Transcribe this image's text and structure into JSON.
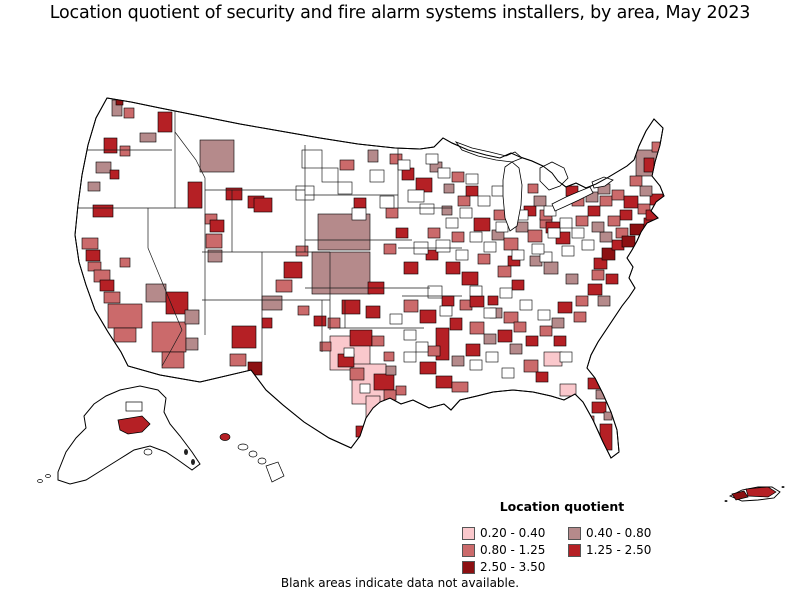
{
  "title": "Location quotient of security and fire alarm systems installers, by area, May 2023",
  "footer": "Blank areas indicate data not available.",
  "legend": {
    "title": "Location quotient",
    "items": [
      {
        "label": "0.20 - 0.40",
        "color": "#FAC8CC"
      },
      {
        "label": "0.40 - 0.80",
        "color": "#B58A8B"
      },
      {
        "label": "0.80 - 1.25",
        "color": "#CB6A6B"
      },
      {
        "label": "1.25 - 2.50",
        "color": "#B52025"
      },
      {
        "label": "2.50 - 3.50",
        "color": "#8C1012"
      }
    ]
  },
  "chart_data": {
    "type": "choropleth_map",
    "title": "Location quotient of security and fire alarm systems installers, by area, May 2023",
    "region": "United States",
    "period": "May 2023",
    "legend_title": "Location quotient",
    "legend_position": "bottom-right",
    "classes": [
      {
        "range": "0.20 - 0.40",
        "min": 0.2,
        "max": 0.4,
        "color": "#FAC8CC"
      },
      {
        "range": "0.40 - 0.80",
        "min": 0.4,
        "max": 0.8,
        "color": "#B58A8B"
      },
      {
        "range": "0.80 - 1.25",
        "min": 0.8,
        "max": 1.25,
        "color": "#CB6A6B"
      },
      {
        "range": "1.25 - 2.50",
        "min": 1.25,
        "max": 2.5,
        "color": "#B52025"
      },
      {
        "range": "2.50 - 3.50",
        "min": 2.5,
        "max": 3.5,
        "color": "#8C1012"
      }
    ],
    "no_data_note": "Blank areas indicate data not available.",
    "no_data_fill": "#FFFFFF"
  },
  "map": {
    "background": "#FFFFFF",
    "border_color": "#000000",
    "class_colors": [
      "#FFFFFF",
      "#FAC8CC",
      "#B58A8B",
      "#CB6A6B",
      "#B52025",
      "#8C1012"
    ],
    "patches": [
      [
        318,
        214,
        52,
        36,
        2
      ],
      [
        312,
        252,
        58,
        42,
        2
      ],
      [
        330,
        336,
        40,
        34,
        1
      ],
      [
        352,
        364,
        34,
        40,
        1
      ],
      [
        366,
        396,
        14,
        26,
        1
      ],
      [
        636,
        150,
        22,
        26,
        2
      ],
      [
        112,
        100,
        10,
        16,
        2
      ],
      [
        116,
        97,
        7,
        8,
        5
      ],
      [
        124,
        108,
        10,
        10,
        3
      ],
      [
        158,
        112,
        14,
        20,
        4
      ],
      [
        140,
        133,
        16,
        9,
        2
      ],
      [
        104,
        138,
        13,
        15,
        4
      ],
      [
        120,
        146,
        10,
        10,
        3
      ],
      [
        96,
        162,
        15,
        11,
        2
      ],
      [
        88,
        182,
        12,
        9,
        2
      ],
      [
        110,
        170,
        9,
        9,
        4
      ],
      [
        93,
        205,
        20,
        12,
        4
      ],
      [
        82,
        238,
        16,
        11,
        3
      ],
      [
        86,
        250,
        14,
        11,
        4
      ],
      [
        88,
        262,
        13,
        9,
        3
      ],
      [
        94,
        270,
        16,
        12,
        3
      ],
      [
        100,
        280,
        14,
        11,
        4
      ],
      [
        104,
        292,
        16,
        11,
        3
      ],
      [
        108,
        304,
        34,
        24,
        3
      ],
      [
        114,
        328,
        22,
        14,
        3
      ],
      [
        146,
        284,
        20,
        18,
        2
      ],
      [
        166,
        292,
        22,
        22,
        4
      ],
      [
        120,
        258,
        10,
        9,
        3
      ],
      [
        152,
        322,
        34,
        30,
        3
      ],
      [
        185,
        310,
        14,
        14,
        2
      ],
      [
        162,
        352,
        22,
        16,
        3
      ],
      [
        186,
        338,
        12,
        12,
        2
      ],
      [
        200,
        140,
        34,
        32,
        2
      ],
      [
        188,
        182,
        14,
        26,
        4
      ],
      [
        205,
        214,
        12,
        10,
        3
      ],
      [
        226,
        188,
        16,
        12,
        4
      ],
      [
        248,
        196,
        16,
        12,
        4
      ],
      [
        210,
        220,
        14,
        12,
        4
      ],
      [
        206,
        234,
        16,
        14,
        3
      ],
      [
        208,
        250,
        14,
        12,
        2
      ],
      [
        254,
        198,
        18,
        14,
        4
      ],
      [
        284,
        262,
        18,
        16,
        4
      ],
      [
        276,
        280,
        16,
        12,
        3
      ],
      [
        262,
        296,
        20,
        14,
        2
      ],
      [
        296,
        246,
        12,
        10,
        3
      ],
      [
        232,
        326,
        24,
        22,
        4
      ],
      [
        230,
        354,
        16,
        12,
        3
      ],
      [
        248,
        362,
        14,
        13,
        5
      ],
      [
        262,
        318,
        10,
        10,
        4
      ],
      [
        314,
        316,
        12,
        10,
        4
      ],
      [
        298,
        306,
        11,
        9,
        3
      ],
      [
        340,
        160,
        14,
        10,
        3
      ],
      [
        368,
        150,
        10,
        12,
        2
      ],
      [
        390,
        154,
        12,
        10,
        3
      ],
      [
        402,
        168,
        12,
        12,
        4
      ],
      [
        416,
        178,
        16,
        14,
        4
      ],
      [
        430,
        162,
        12,
        10,
        2
      ],
      [
        354,
        198,
        12,
        10,
        4
      ],
      [
        386,
        208,
        12,
        10,
        3
      ],
      [
        396,
        228,
        12,
        10,
        4
      ],
      [
        384,
        244,
        12,
        10,
        3
      ],
      [
        368,
        282,
        16,
        12,
        4
      ],
      [
        404,
        262,
        14,
        12,
        4
      ],
      [
        342,
        300,
        18,
        14,
        4
      ],
      [
        366,
        306,
        14,
        12,
        4
      ],
      [
        328,
        318,
        12,
        10,
        3
      ],
      [
        350,
        330,
        22,
        16,
        4
      ],
      [
        372,
        336,
        12,
        10,
        3
      ],
      [
        338,
        354,
        16,
        13,
        4
      ],
      [
        350,
        368,
        14,
        12,
        3
      ],
      [
        374,
        374,
        20,
        16,
        4
      ],
      [
        386,
        366,
        10,
        9,
        2
      ],
      [
        356,
        426,
        14,
        11,
        4
      ],
      [
        320,
        342,
        11,
        9,
        3
      ],
      [
        384,
        352,
        10,
        9,
        3
      ],
      [
        396,
        386,
        10,
        9,
        3
      ],
      [
        384,
        390,
        12,
        10,
        3
      ],
      [
        404,
        300,
        14,
        12,
        3
      ],
      [
        420,
        310,
        16,
        13,
        4
      ],
      [
        436,
        328,
        13,
        32,
        4
      ],
      [
        450,
        318,
        12,
        12,
        4
      ],
      [
        428,
        346,
        12,
        10,
        3
      ],
      [
        420,
        362,
        16,
        12,
        4
      ],
      [
        436,
        376,
        16,
        12,
        4
      ],
      [
        452,
        382,
        16,
        10,
        3
      ],
      [
        452,
        356,
        12,
        10,
        2
      ],
      [
        466,
        344,
        14,
        12,
        4
      ],
      [
        470,
        322,
        14,
        12,
        3
      ],
      [
        484,
        334,
        12,
        10,
        2
      ],
      [
        460,
        300,
        12,
        10,
        3
      ],
      [
        470,
        296,
        14,
        11,
        4
      ],
      [
        490,
        308,
        12,
        10,
        2
      ],
      [
        504,
        312,
        14,
        11,
        3
      ],
      [
        442,
        296,
        12,
        10,
        4
      ],
      [
        488,
        296,
        10,
        9,
        4
      ],
      [
        428,
        228,
        12,
        10,
        3
      ],
      [
        442,
        206,
        10,
        9,
        2
      ],
      [
        452,
        232,
        12,
        10,
        3
      ],
      [
        426,
        250,
        12,
        10,
        4
      ],
      [
        446,
        262,
        14,
        12,
        4
      ],
      [
        462,
        272,
        16,
        13,
        4
      ],
      [
        478,
        254,
        12,
        10,
        3
      ],
      [
        474,
        218,
        16,
        13,
        4
      ],
      [
        458,
        196,
        12,
        10,
        3
      ],
      [
        444,
        184,
        10,
        9,
        2
      ],
      [
        452,
        172,
        12,
        10,
        3
      ],
      [
        466,
        186,
        12,
        10,
        4
      ],
      [
        492,
        230,
        12,
        10,
        2
      ],
      [
        504,
        238,
        14,
        12,
        3
      ],
      [
        494,
        210,
        12,
        10,
        3
      ],
      [
        516,
        222,
        12,
        10,
        2
      ],
      [
        528,
        230,
        14,
        12,
        3
      ],
      [
        540,
        218,
        12,
        10,
        3
      ],
      [
        524,
        206,
        12,
        10,
        4
      ],
      [
        556,
        232,
        14,
        12,
        4
      ],
      [
        508,
        256,
        12,
        10,
        4
      ],
      [
        498,
        266,
        13,
        11,
        3
      ],
      [
        512,
        280,
        12,
        10,
        4
      ],
      [
        530,
        256,
        12,
        10,
        2
      ],
      [
        544,
        262,
        14,
        12,
        2
      ],
      [
        534,
        196,
        12,
        10,
        2
      ],
      [
        540,
        210,
        12,
        10,
        3
      ],
      [
        546,
        222,
        14,
        11,
        4
      ],
      [
        528,
        184,
        10,
        9,
        3
      ],
      [
        498,
        330,
        14,
        12,
        4
      ],
      [
        514,
        322,
        12,
        10,
        3
      ],
      [
        510,
        344,
        12,
        10,
        2
      ],
      [
        526,
        336,
        12,
        10,
        4
      ],
      [
        540,
        326,
        12,
        10,
        3
      ],
      [
        554,
        336,
        12,
        10,
        4
      ],
      [
        544,
        352,
        18,
        14,
        1
      ],
      [
        524,
        360,
        14,
        12,
        3
      ],
      [
        536,
        372,
        12,
        10,
        4
      ],
      [
        552,
        318,
        12,
        10,
        2
      ],
      [
        558,
        302,
        14,
        11,
        4
      ],
      [
        576,
        296,
        12,
        10,
        3
      ],
      [
        588,
        284,
        14,
        11,
        4
      ],
      [
        598,
        296,
        12,
        10,
        2
      ],
      [
        574,
        312,
        12,
        10,
        3
      ],
      [
        592,
        270,
        12,
        10,
        3
      ],
      [
        594,
        258,
        13,
        11,
        4
      ],
      [
        606,
        274,
        12,
        10,
        4
      ],
      [
        566,
        274,
        12,
        10,
        2
      ],
      [
        560,
        384,
        16,
        12,
        1
      ],
      [
        588,
        378,
        14,
        11,
        4
      ],
      [
        592,
        402,
        14,
        11,
        4
      ],
      [
        580,
        416,
        14,
        11,
        3
      ],
      [
        600,
        424,
        12,
        26,
        4
      ],
      [
        588,
        438,
        10,
        12,
        3
      ],
      [
        596,
        390,
        10,
        9,
        2
      ],
      [
        604,
        412,
        8,
        8,
        2
      ],
      [
        602,
        248,
        13,
        12,
        5
      ],
      [
        612,
        240,
        12,
        10,
        4
      ],
      [
        616,
        228,
        12,
        10,
        3
      ],
      [
        600,
        232,
        12,
        10,
        2
      ],
      [
        622,
        236,
        13,
        11,
        5
      ],
      [
        630,
        224,
        14,
        11,
        5
      ],
      [
        644,
        218,
        10,
        9,
        4
      ],
      [
        620,
        210,
        12,
        10,
        4
      ],
      [
        608,
        216,
        12,
        10,
        3
      ],
      [
        592,
        222,
        12,
        10,
        2
      ],
      [
        576,
        216,
        12,
        10,
        3
      ],
      [
        588,
        206,
        12,
        10,
        4
      ],
      [
        600,
        196,
        12,
        10,
        3
      ],
      [
        586,
        192,
        12,
        10,
        2
      ],
      [
        572,
        196,
        12,
        10,
        3
      ],
      [
        566,
        186,
        12,
        10,
        4
      ],
      [
        598,
        184,
        12,
        10,
        2
      ],
      [
        612,
        190,
        12,
        10,
        3
      ],
      [
        624,
        196,
        14,
        12,
        4
      ],
      [
        638,
        204,
        12,
        10,
        3
      ],
      [
        646,
        210,
        12,
        10,
        4
      ],
      [
        650,
        194,
        13,
        11,
        4
      ],
      [
        640,
        186,
        12,
        10,
        2
      ],
      [
        630,
        176,
        12,
        10,
        3
      ],
      [
        644,
        158,
        10,
        14,
        4
      ],
      [
        652,
        142,
        8,
        10,
        3
      ],
      [
        302,
        150,
        20,
        18,
        0
      ],
      [
        322,
        168,
        16,
        14,
        0
      ],
      [
        296,
        186,
        18,
        14,
        0
      ],
      [
        338,
        182,
        14,
        12,
        0
      ],
      [
        370,
        170,
        14,
        12,
        0
      ],
      [
        408,
        190,
        16,
        12,
        0
      ],
      [
        420,
        204,
        14,
        10,
        0
      ],
      [
        436,
        240,
        14,
        12,
        0
      ],
      [
        414,
        242,
        14,
        12,
        0
      ],
      [
        456,
        250,
        12,
        10,
        0
      ],
      [
        484,
        242,
        12,
        10,
        0
      ],
      [
        496,
        222,
        12,
        10,
        0
      ],
      [
        512,
        250,
        12,
        10,
        0
      ],
      [
        540,
        252,
        12,
        10,
        0
      ],
      [
        562,
        246,
        12,
        10,
        0
      ],
      [
        582,
        240,
        12,
        10,
        0
      ],
      [
        470,
        286,
        12,
        10,
        0
      ],
      [
        484,
        308,
        12,
        10,
        0
      ],
      [
        428,
        286,
        14,
        12,
        0
      ],
      [
        390,
        314,
        12,
        10,
        0
      ],
      [
        404,
        330,
        12,
        10,
        0
      ],
      [
        440,
        306,
        12,
        10,
        0
      ],
      [
        500,
        288,
        12,
        10,
        0
      ],
      [
        520,
        300,
        12,
        10,
        0
      ],
      [
        538,
        310,
        12,
        10,
        0
      ],
      [
        404,
        352,
        12,
        10,
        0
      ],
      [
        416,
        342,
        12,
        10,
        0
      ],
      [
        470,
        360,
        12,
        10,
        0
      ],
      [
        486,
        352,
        12,
        10,
        0
      ],
      [
        502,
        368,
        12,
        10,
        0
      ],
      [
        560,
        352,
        12,
        10,
        0
      ],
      [
        572,
        228,
        12,
        10,
        0
      ],
      [
        548,
        228,
        12,
        10,
        0
      ],
      [
        560,
        218,
        12,
        10,
        0
      ],
      [
        544,
        206,
        12,
        10,
        0
      ],
      [
        516,
        210,
        12,
        10,
        0
      ],
      [
        532,
        244,
        12,
        10,
        0
      ],
      [
        470,
        232,
        12,
        10,
        0
      ],
      [
        446,
        218,
        12,
        10,
        0
      ],
      [
        460,
        208,
        12,
        10,
        0
      ],
      [
        478,
        196,
        12,
        10,
        0
      ],
      [
        492,
        186,
        12,
        10,
        0
      ],
      [
        466,
        174,
        12,
        10,
        0
      ],
      [
        438,
        168,
        12,
        10,
        0
      ],
      [
        426,
        154,
        12,
        10,
        0
      ],
      [
        398,
        160,
        12,
        10,
        0
      ],
      [
        380,
        196,
        14,
        12,
        0
      ],
      [
        352,
        208,
        14,
        12,
        0
      ],
      [
        344,
        348,
        10,
        9,
        0
      ],
      [
        360,
        384,
        10,
        9,
        0
      ]
    ]
  }
}
